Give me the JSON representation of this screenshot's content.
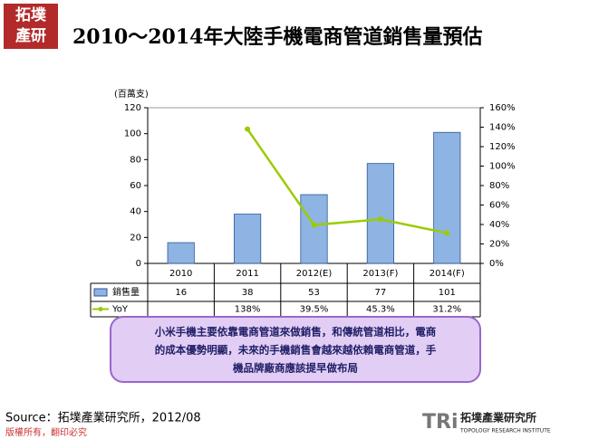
{
  "chart_data": {
    "type": "bar_line",
    "title": "2010～2014年大陸手機電商管道銷售量預估",
    "y_label": "(百萬支)",
    "categories": [
      "2010",
      "2011",
      "2012(E)",
      "2013(F)",
      "2014(F)"
    ],
    "series": [
      {
        "name": "銷售量",
        "type": "bar",
        "color": "#8db4e2",
        "values": [
          16,
          38,
          53,
          77,
          101
        ]
      },
      {
        "name": "YoY",
        "type": "line",
        "color": "#99cc00",
        "axis": "y2",
        "values": [
          null,
          138,
          39.5,
          45.3,
          31.2
        ],
        "value_labels": [
          null,
          "138%",
          "39.5%",
          "45.3%",
          "31.2%"
        ]
      }
    ],
    "ylim": [
      0,
      120
    ],
    "yticks": [
      0,
      20,
      40,
      60,
      80,
      100,
      120
    ],
    "y2lim": [
      0,
      160
    ],
    "y2ticks": [
      {
        "value": 0,
        "label": "0%"
      },
      {
        "value": 20,
        "label": "20%"
      },
      {
        "value": 40,
        "label": "40%"
      },
      {
        "value": 60,
        "label": "60%"
      },
      {
        "value": 80,
        "label": "80%"
      },
      {
        "value": 100,
        "label": "100%"
      },
      {
        "value": 120,
        "label": "120%"
      },
      {
        "value": 140,
        "label": "140%"
      },
      {
        "value": 160,
        "label": "160%"
      }
    ]
  },
  "logo": [
    "拓墣",
    "產研"
  ],
  "callout": [
    "小米手機主要依靠電商管道來做銷售，和傳統管道相比，電商",
    "的成本優勢明顯，未來的手機銷售會越來越依賴電商管道，手",
    "機品牌廠商應該提早做布局"
  ],
  "source": "Source：拓墣產業研究所，2012/08",
  "footer": "版權所有，翻印必究",
  "brand": {
    "mark": "TRi",
    "name": "拓墣產業研究所",
    "subtitle": "TOPOLOGY RESEARCH INSTITUTE"
  }
}
